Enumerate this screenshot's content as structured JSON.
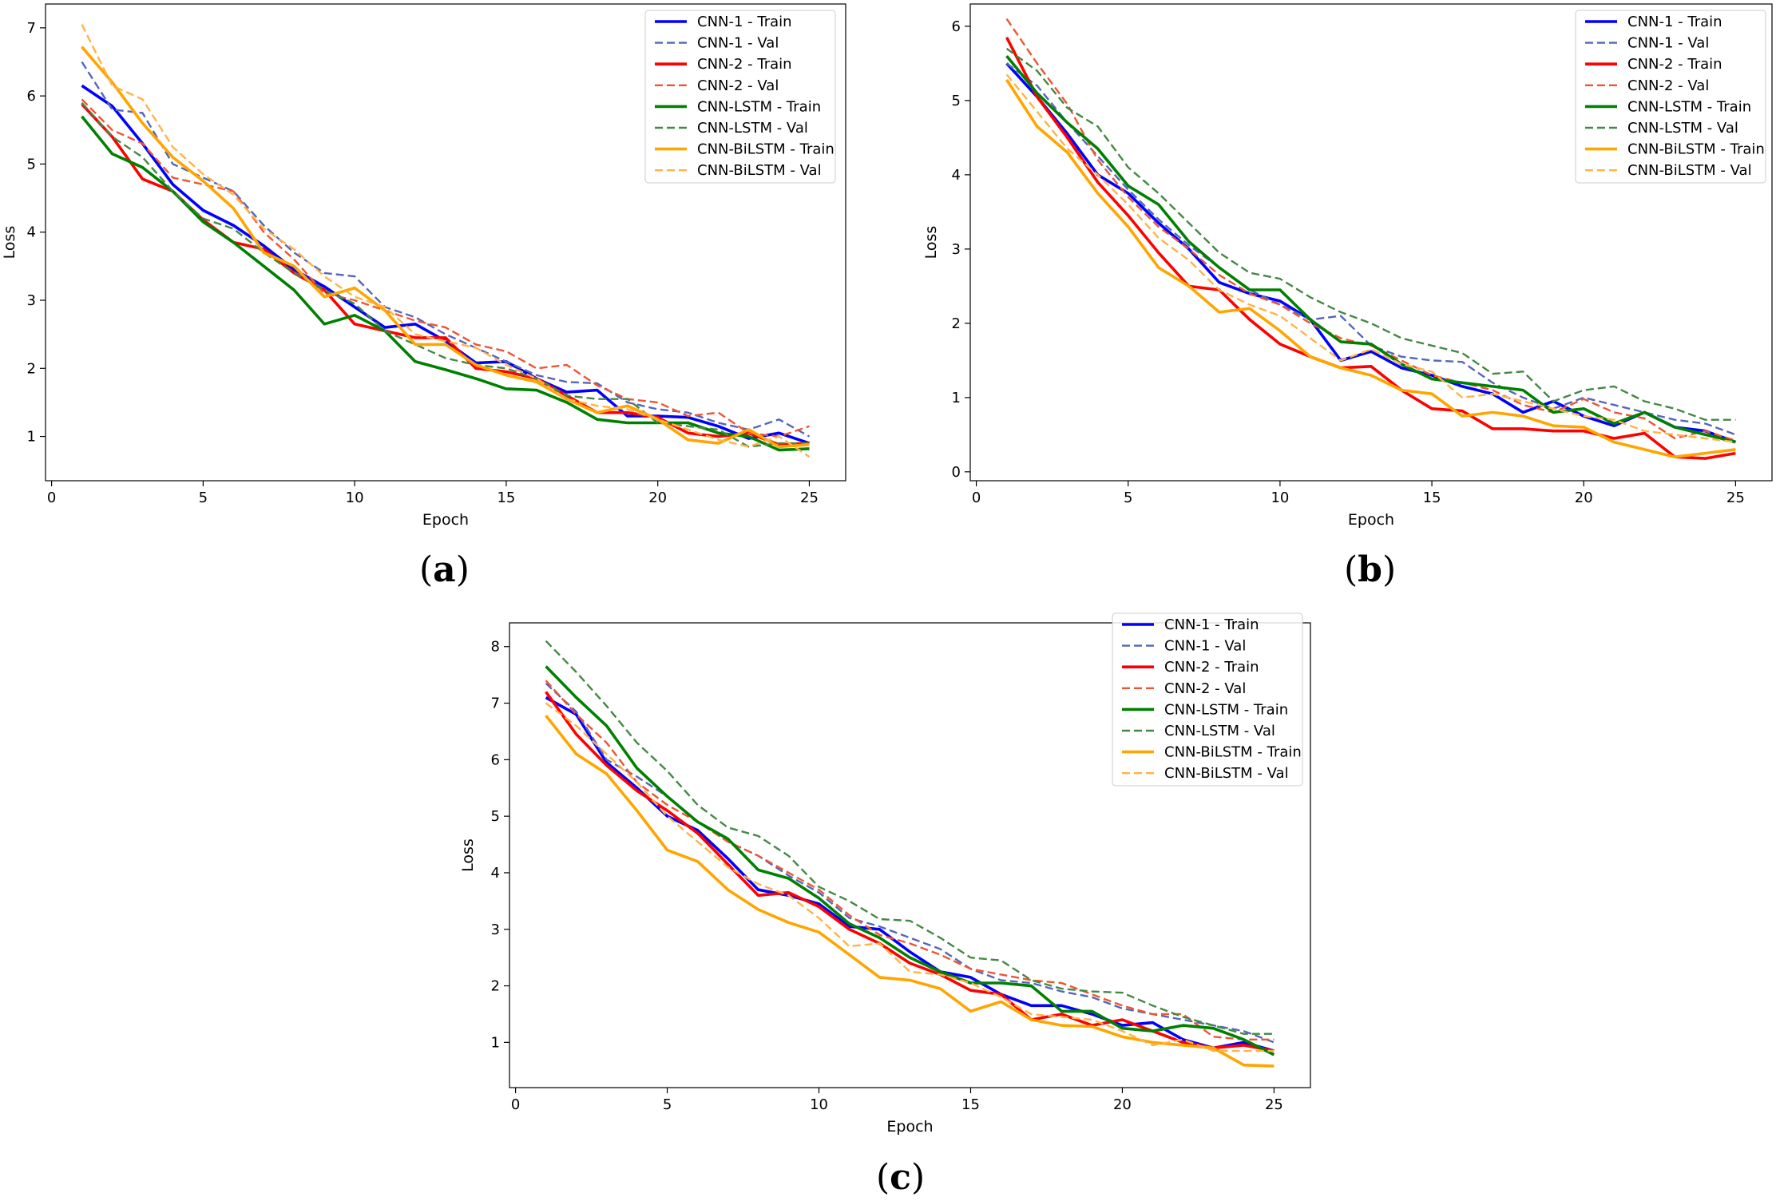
{
  "chart_data": [
    {
      "panel": "(a)",
      "panel_letter": "a",
      "type": "line",
      "xlabel": "Epoch",
      "ylabel": "Loss",
      "xlim": [
        -0.2,
        26.2
      ],
      "ylim": [
        0.35,
        7.35
      ],
      "xticks": [
        0,
        5,
        10,
        15,
        20,
        25
      ],
      "yticks": [
        1,
        2,
        3,
        4,
        5,
        6,
        7
      ],
      "legend_position": "top-right",
      "x": [
        1,
        2,
        3,
        4,
        5,
        6,
        7,
        8,
        9,
        10,
        11,
        12,
        13,
        14,
        15,
        16,
        17,
        18,
        19,
        20,
        21,
        22,
        23,
        24,
        25
      ],
      "series": [
        {
          "name": "CNN-1 - Train",
          "color": "#0000ff",
          "dashed": false,
          "values": [
            6.15,
            5.85,
            5.3,
            4.7,
            4.32,
            4.1,
            3.8,
            3.45,
            3.2,
            2.9,
            2.6,
            2.65,
            2.4,
            2.08,
            2.1,
            1.85,
            1.65,
            1.68,
            1.3,
            1.3,
            1.28,
            1.15,
            0.97,
            1.05,
            0.9
          ]
        },
        {
          "name": "CNN-1 - Val",
          "color": "#5566bb",
          "dashed": true,
          "values": [
            6.5,
            5.8,
            5.75,
            5.0,
            4.8,
            4.6,
            4.1,
            3.7,
            3.4,
            3.35,
            2.9,
            2.75,
            2.5,
            2.3,
            2.1,
            1.9,
            1.8,
            1.78,
            1.5,
            1.4,
            1.35,
            1.2,
            1.1,
            1.25,
            1.0
          ]
        },
        {
          "name": "CNN-2 - Train",
          "color": "#ff0000",
          "dashed": false,
          "values": [
            5.88,
            5.4,
            4.78,
            4.6,
            4.18,
            3.85,
            3.75,
            3.4,
            3.15,
            2.65,
            2.55,
            2.45,
            2.45,
            2.0,
            1.95,
            1.85,
            1.6,
            1.35,
            1.35,
            1.28,
            1.05,
            1.0,
            1.05,
            0.88,
            0.9
          ]
        },
        {
          "name": "CNN-2 - Val",
          "color": "#ee5533",
          "dashed": true,
          "values": [
            5.95,
            5.5,
            5.3,
            4.8,
            4.7,
            4.6,
            4.0,
            3.6,
            3.1,
            3.0,
            2.85,
            2.7,
            2.6,
            2.35,
            2.25,
            2.0,
            2.05,
            1.75,
            1.55,
            1.5,
            1.3,
            1.35,
            1.05,
            1.0,
            1.15
          ]
        },
        {
          "name": "CNN-LSTM - Train",
          "color": "#008000",
          "dashed": false,
          "values": [
            5.7,
            5.15,
            4.95,
            4.6,
            4.15,
            3.85,
            3.5,
            3.15,
            2.65,
            2.78,
            2.55,
            2.1,
            1.98,
            1.85,
            1.7,
            1.68,
            1.5,
            1.25,
            1.2,
            1.2,
            1.2,
            1.05,
            1.0,
            0.8,
            0.82
          ]
        },
        {
          "name": "CNN-LSTM - Val",
          "color": "#448844",
          "dashed": true,
          "values": [
            5.9,
            5.4,
            5.1,
            4.6,
            4.2,
            4.05,
            3.7,
            3.4,
            3.15,
            2.95,
            2.55,
            2.35,
            2.15,
            2.05,
            2.0,
            1.85,
            1.6,
            1.55,
            1.55,
            1.2,
            1.15,
            1.1,
            0.85,
            0.9,
            0.9
          ]
        },
        {
          "name": "CNN-BiLSTM - Train",
          "color": "#ffa500",
          "dashed": false,
          "values": [
            6.72,
            6.2,
            5.6,
            5.1,
            4.75,
            4.35,
            3.7,
            3.5,
            3.05,
            3.18,
            2.85,
            2.35,
            2.35,
            2.05,
            1.9,
            1.8,
            1.55,
            1.35,
            1.45,
            1.25,
            0.95,
            0.9,
            1.1,
            0.85,
            0.88
          ]
        },
        {
          "name": "CNN-BiLSTM - Val",
          "color": "#ffb347",
          "dashed": true,
          "values": [
            7.05,
            6.15,
            5.95,
            5.25,
            4.85,
            4.55,
            4.05,
            3.75,
            3.35,
            3.05,
            2.9,
            2.5,
            2.4,
            2.3,
            2.05,
            1.85,
            1.55,
            1.45,
            1.4,
            1.25,
            1.1,
            0.95,
            0.85,
            1.0,
            0.7
          ]
        }
      ]
    },
    {
      "panel": "(b)",
      "panel_letter": "b",
      "type": "line",
      "xlabel": "Epoch",
      "ylabel": "Loss",
      "xlim": [
        -0.2,
        26.2
      ],
      "ylim": [
        -0.12,
        6.3
      ],
      "xticks": [
        0,
        5,
        10,
        15,
        20,
        25
      ],
      "yticks": [
        0,
        1,
        2,
        3,
        4,
        5,
        6
      ],
      "legend_position": "top-right",
      "x": [
        1,
        2,
        3,
        4,
        5,
        6,
        7,
        8,
        9,
        10,
        11,
        12,
        13,
        14,
        15,
        16,
        17,
        18,
        19,
        20,
        21,
        22,
        23,
        24,
        25
      ],
      "series": [
        {
          "name": "CNN-1 - Train",
          "color": "#0000ff",
          "dashed": false,
          "values": [
            5.5,
            5.05,
            4.55,
            4.0,
            3.75,
            3.35,
            3.0,
            2.55,
            2.4,
            2.3,
            2.05,
            1.5,
            1.62,
            1.4,
            1.3,
            1.15,
            1.05,
            0.8,
            0.95,
            0.75,
            0.62,
            0.8,
            0.6,
            0.55,
            0.4
          ]
        },
        {
          "name": "CNN-1 - Val",
          "color": "#5566bb",
          "dashed": true,
          "values": [
            5.5,
            5.2,
            4.7,
            4.25,
            3.8,
            3.4,
            3.05,
            2.75,
            2.45,
            2.25,
            2.05,
            2.1,
            1.7,
            1.55,
            1.5,
            1.48,
            1.2,
            1.0,
            0.85,
            1.0,
            0.9,
            0.8,
            0.7,
            0.65,
            0.5
          ]
        },
        {
          "name": "CNN-2 - Train",
          "color": "#ff0000",
          "dashed": false,
          "values": [
            5.85,
            5.05,
            4.5,
            3.9,
            3.45,
            2.95,
            2.5,
            2.45,
            2.05,
            1.72,
            1.55,
            1.4,
            1.42,
            1.1,
            0.85,
            0.82,
            0.58,
            0.58,
            0.55,
            0.55,
            0.45,
            0.52,
            0.2,
            0.18,
            0.25
          ]
        },
        {
          "name": "CNN-2 - Val",
          "color": "#ee5533",
          "dashed": true,
          "values": [
            6.1,
            5.5,
            4.95,
            4.2,
            3.7,
            3.3,
            3.0,
            2.65,
            2.4,
            2.25,
            2.0,
            1.8,
            1.7,
            1.5,
            1.3,
            1.2,
            1.1,
            0.9,
            0.8,
            0.98,
            0.8,
            0.72,
            0.45,
            0.55,
            0.42
          ]
        },
        {
          "name": "CNN-LSTM - Train",
          "color": "#008000",
          "dashed": false,
          "values": [
            5.6,
            5.1,
            4.7,
            4.35,
            3.85,
            3.6,
            3.1,
            2.75,
            2.45,
            2.45,
            2.05,
            1.75,
            1.72,
            1.45,
            1.25,
            1.2,
            1.15,
            1.1,
            0.8,
            0.85,
            0.65,
            0.8,
            0.6,
            0.5,
            0.4
          ]
        },
        {
          "name": "CNN-LSTM - Val",
          "color": "#448844",
          "dashed": true,
          "values": [
            5.7,
            5.4,
            4.9,
            4.65,
            4.1,
            3.75,
            3.35,
            2.95,
            2.68,
            2.6,
            2.35,
            2.15,
            2.0,
            1.8,
            1.7,
            1.6,
            1.32,
            1.35,
            0.95,
            1.1,
            1.15,
            0.95,
            0.85,
            0.7,
            0.7
          ]
        },
        {
          "name": "CNN-BiLSTM - Train",
          "color": "#ffa500",
          "dashed": false,
          "values": [
            5.28,
            4.65,
            4.3,
            3.75,
            3.3,
            2.75,
            2.5,
            2.15,
            2.2,
            1.9,
            1.55,
            1.4,
            1.3,
            1.1,
            1.05,
            0.75,
            0.8,
            0.75,
            0.62,
            0.6,
            0.4,
            0.3,
            0.2,
            0.25,
            0.3
          ]
        },
        {
          "name": "CNN-BiLSTM - Val",
          "color": "#ffb347",
          "dashed": true,
          "values": [
            5.35,
            4.85,
            4.35,
            4.0,
            3.6,
            3.15,
            2.85,
            2.45,
            2.25,
            2.1,
            1.8,
            1.5,
            1.65,
            1.45,
            1.35,
            1.0,
            1.05,
            0.95,
            0.85,
            0.75,
            0.7,
            0.55,
            0.5,
            0.45,
            0.4
          ]
        }
      ]
    },
    {
      "panel": "(c)",
      "panel_letter": "c",
      "type": "line",
      "xlabel": "Epoch",
      "ylabel": "Loss",
      "xlim": [
        -0.2,
        26.2
      ],
      "ylim": [
        0.2,
        8.42
      ],
      "xticks": [
        0,
        5,
        10,
        15,
        20,
        25
      ],
      "yticks": [
        1,
        2,
        3,
        4,
        5,
        6,
        7,
        8
      ],
      "legend_position": "top-right",
      "x": [
        1,
        2,
        3,
        4,
        5,
        6,
        7,
        8,
        9,
        10,
        11,
        12,
        13,
        14,
        15,
        16,
        17,
        18,
        19,
        20,
        21,
        22,
        23,
        24,
        25
      ],
      "series": [
        {
          "name": "CNN-1 - Train",
          "color": "#0000ff",
          "dashed": false,
          "values": [
            7.1,
            6.8,
            5.95,
            5.5,
            5.0,
            4.75,
            4.25,
            3.7,
            3.6,
            3.45,
            3.05,
            3.0,
            2.6,
            2.25,
            2.15,
            1.85,
            1.65,
            1.65,
            1.5,
            1.3,
            1.35,
            1.05,
            0.9,
            1.0,
            0.85
          ]
        },
        {
          "name": "CNN-1 - Val",
          "color": "#5566bb",
          "dashed": true,
          "values": [
            7.35,
            6.85,
            6.0,
            5.7,
            5.35,
            4.9,
            4.55,
            4.3,
            3.95,
            3.65,
            3.2,
            3.05,
            2.85,
            2.65,
            2.3,
            2.1,
            2.05,
            1.9,
            1.8,
            1.6,
            1.5,
            1.4,
            1.3,
            1.2,
            1.0
          ]
        },
        {
          "name": "CNN-2 - Train",
          "color": "#ff0000",
          "dashed": false,
          "values": [
            7.2,
            6.45,
            5.9,
            5.45,
            5.1,
            4.7,
            4.15,
            3.6,
            3.65,
            3.4,
            3.0,
            2.75,
            2.4,
            2.2,
            1.92,
            1.85,
            1.4,
            1.5,
            1.3,
            1.4,
            1.2,
            1.0,
            0.9,
            0.95,
            0.85
          ]
        },
        {
          "name": "CNN-2 - Val",
          "color": "#ee5533",
          "dashed": true,
          "values": [
            7.4,
            6.8,
            6.3,
            5.6,
            5.2,
            4.9,
            4.55,
            4.3,
            4.0,
            3.7,
            3.25,
            2.9,
            2.75,
            2.55,
            2.3,
            2.2,
            2.1,
            2.05,
            1.85,
            1.65,
            1.5,
            1.5,
            1.1,
            1.05,
            1.05
          ]
        },
        {
          "name": "CNN-LSTM - Train",
          "color": "#008000",
          "dashed": false,
          "values": [
            7.65,
            7.1,
            6.6,
            5.85,
            5.35,
            4.9,
            4.6,
            4.05,
            3.9,
            3.55,
            3.1,
            2.85,
            2.5,
            2.25,
            2.05,
            2.05,
            2.0,
            1.55,
            1.55,
            1.25,
            1.2,
            1.3,
            1.25,
            1.05,
            0.78
          ]
        },
        {
          "name": "CNN-LSTM - Val",
          "color": "#448844",
          "dashed": true,
          "values": [
            8.1,
            7.55,
            6.95,
            6.3,
            5.8,
            5.2,
            4.8,
            4.65,
            4.3,
            3.75,
            3.5,
            3.18,
            3.15,
            2.85,
            2.5,
            2.45,
            2.1,
            1.95,
            1.9,
            1.88,
            1.65,
            1.45,
            1.3,
            1.15,
            1.15
          ]
        },
        {
          "name": "CNN-BiLSTM - Train",
          "color": "#ffa500",
          "dashed": false,
          "values": [
            6.78,
            6.1,
            5.75,
            5.1,
            4.4,
            4.2,
            3.7,
            3.35,
            3.12,
            2.95,
            2.55,
            2.15,
            2.1,
            1.95,
            1.55,
            1.72,
            1.4,
            1.3,
            1.28,
            1.1,
            1.0,
            0.95,
            0.9,
            0.6,
            0.58
          ]
        },
        {
          "name": "CNN-BiLSTM - Val",
          "color": "#ffb347",
          "dashed": true,
          "values": [
            7.0,
            6.6,
            6.1,
            5.6,
            5.0,
            4.55,
            4.1,
            3.8,
            3.6,
            3.2,
            2.7,
            2.75,
            2.25,
            2.2,
            2.05,
            1.8,
            1.5,
            1.45,
            1.4,
            1.2,
            0.95,
            1.05,
            0.85,
            0.85,
            0.85
          ]
        }
      ]
    }
  ]
}
